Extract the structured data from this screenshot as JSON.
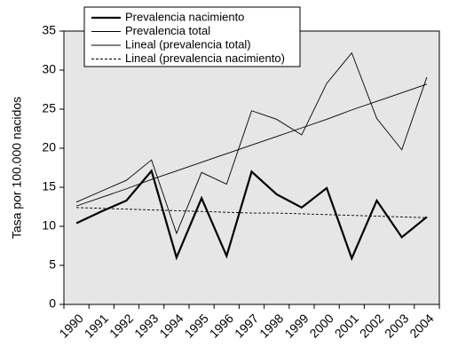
{
  "chart_data": {
    "type": "line",
    "y_label": "Tasa por 100.000 nacidos",
    "categories": [
      "1990",
      "1991",
      "1992",
      "1993",
      "1994",
      "1995",
      "1996",
      "1997",
      "1998",
      "1999",
      "2000",
      "2001",
      "2002",
      "2003",
      "2004"
    ],
    "series": [
      {
        "name": "Prevalencia nacimiento",
        "color": "#000000",
        "width": 2.2,
        "style": "solid",
        "values": [
          10.4,
          11.9,
          13.3,
          17.1,
          6.0,
          13.6,
          6.2,
          17.0,
          14.1,
          12.4,
          14.9,
          5.9,
          13.3,
          8.6,
          11.2
        ]
      },
      {
        "name": "Prevalencia total",
        "color": "#000000",
        "width": 0.9,
        "style": "solid",
        "values": [
          13.1,
          14.5,
          15.9,
          18.5,
          9.1,
          16.9,
          15.4,
          24.8,
          23.7,
          21.7,
          28.3,
          32.2,
          23.8,
          19.8,
          29.1
        ]
      },
      {
        "name": "Lineal (prevalencia total)",
        "color": "#000000",
        "width": 0.9,
        "style": "solid",
        "values": [
          12.6,
          13.7,
          14.8,
          16.0,
          17.1,
          18.2,
          19.3,
          20.4,
          21.5,
          22.6,
          23.7,
          24.9,
          26.0,
          27.1,
          28.2
        ]
      },
      {
        "name": "Lineal (prevalencia nacimiento)",
        "color": "#000000",
        "width": 0.9,
        "style": "dashed",
        "values": [
          12.4,
          12.3,
          12.2,
          12.1,
          12.0,
          11.9,
          11.8,
          11.7,
          11.7,
          11.6,
          11.5,
          11.4,
          11.3,
          11.2,
          11.1
        ]
      }
    ],
    "ylim": [
      0,
      35
    ],
    "yticks": [
      0,
      5,
      10,
      15,
      20,
      25,
      30,
      35
    ],
    "background": "#e6e6e6"
  }
}
